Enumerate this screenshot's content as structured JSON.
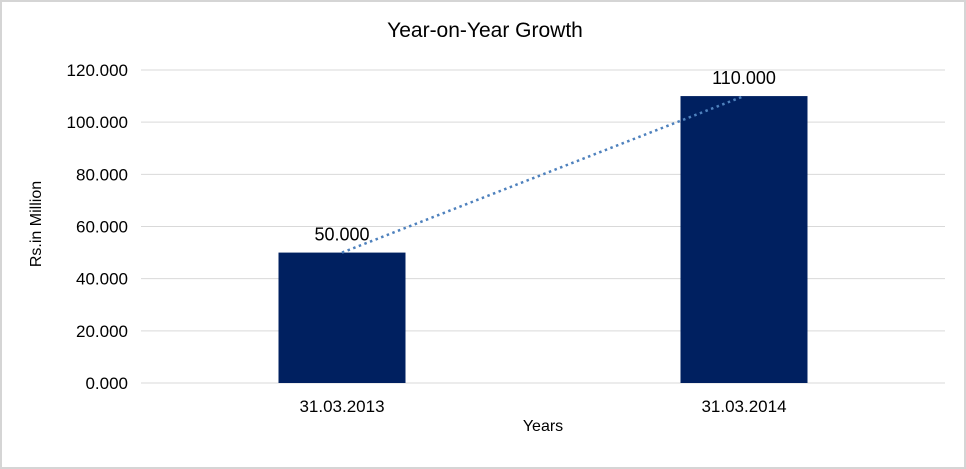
{
  "chart_data": {
    "type": "bar",
    "title": "Year-on-Year Growth",
    "xlabel": "Years",
    "ylabel": "Rs.in Million",
    "categories": [
      "31.03.2013",
      "31.03.2014"
    ],
    "values": [
      50,
      110
    ],
    "data_labels": [
      "50.000",
      "110.000"
    ],
    "yticks": [
      {
        "value": 0,
        "label": "0.000"
      },
      {
        "value": 20,
        "label": "20.000"
      },
      {
        "value": 40,
        "label": "40.000"
      },
      {
        "value": 60,
        "label": "60.000"
      },
      {
        "value": 80,
        "label": "80.000"
      },
      {
        "value": 100,
        "label": "100.000"
      },
      {
        "value": 120,
        "label": "120.000"
      }
    ],
    "ylim": [
      0,
      120
    ],
    "grid": true,
    "legend": "none",
    "trendline": {
      "style": "dotted",
      "from_category": "31.03.2013",
      "to_category": "31.03.2014",
      "connects": "bar-top-centers"
    },
    "colors": {
      "bar": "#002060",
      "trendline": "#4e81bd",
      "gridline": "#d9d9d9",
      "axis_line": "#d9d9d9",
      "text": "#000000",
      "background": "#ffffff",
      "border": "#d5d5d5"
    }
  }
}
